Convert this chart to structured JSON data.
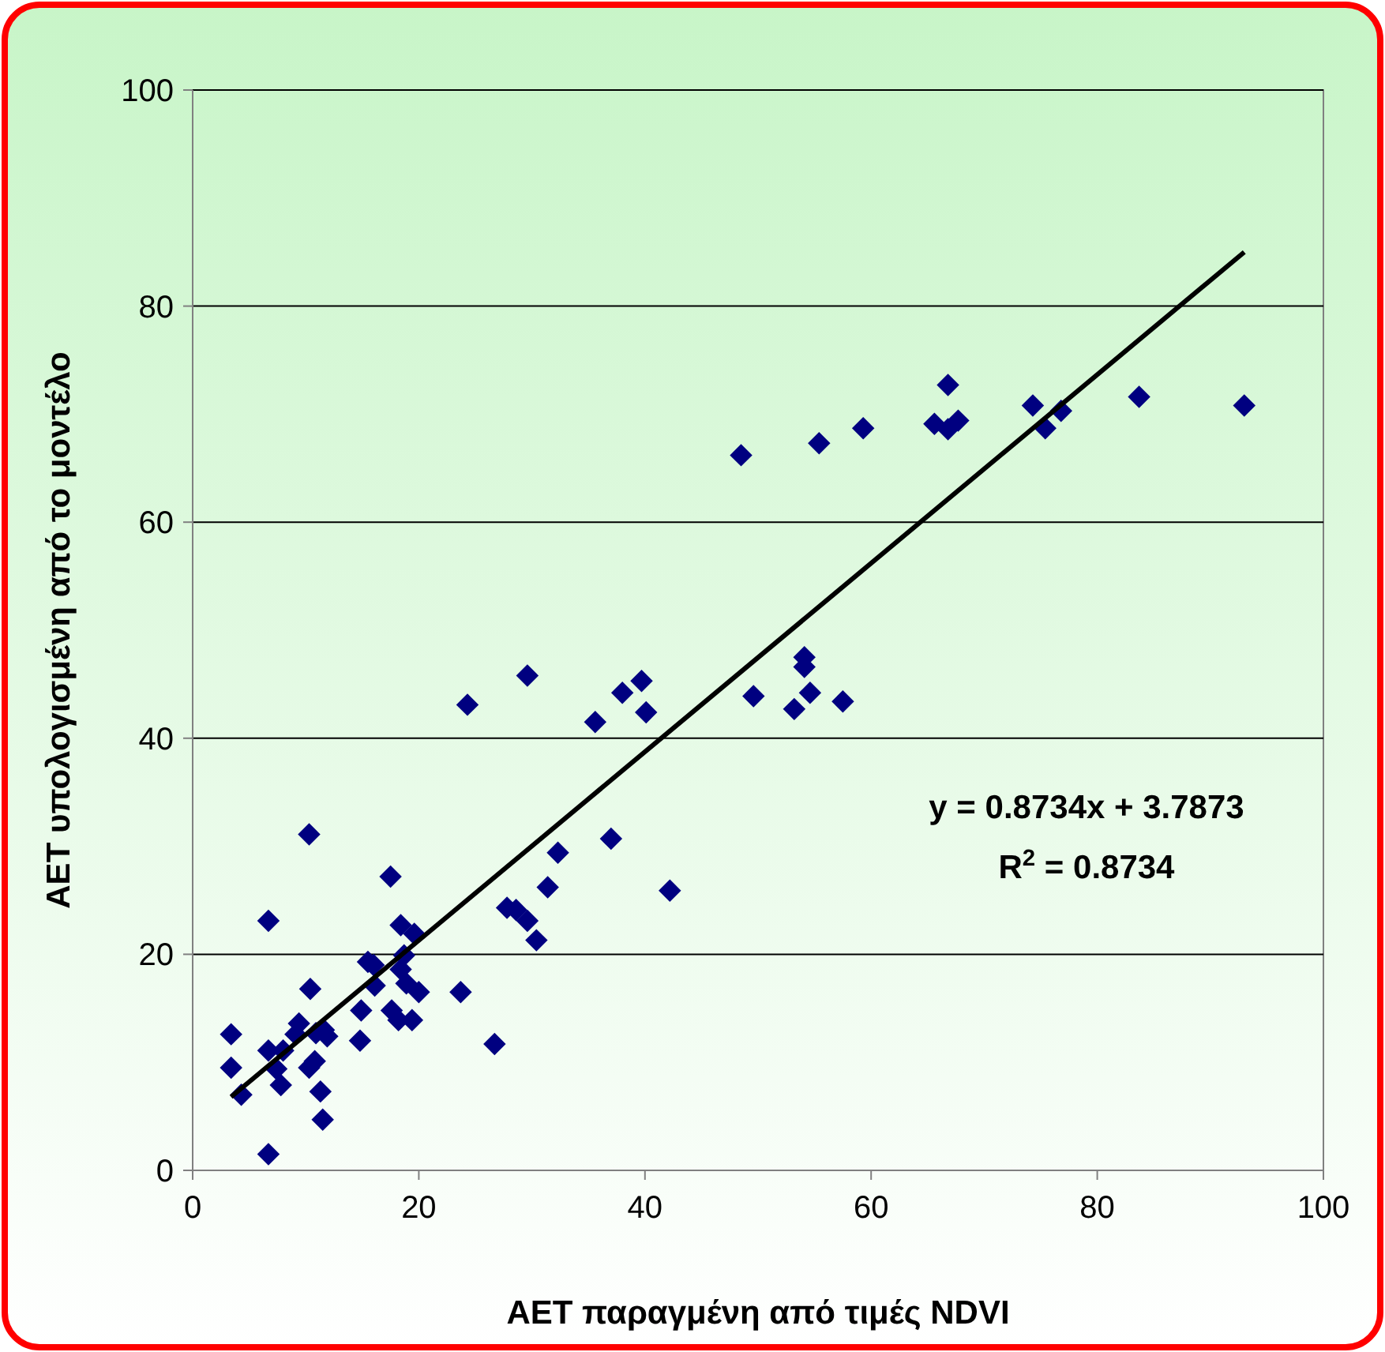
{
  "chart_data": {
    "type": "scatter",
    "xlabel": "AET παραγμένη από τιμές NDVI",
    "ylabel": "AET υπολογισμένη από το μοντέλο",
    "xlim": [
      0,
      100
    ],
    "ylim": [
      0,
      100
    ],
    "xticks": [
      0,
      20,
      40,
      60,
      80,
      100
    ],
    "yticks": [
      0,
      20,
      40,
      60,
      80,
      100
    ],
    "grid": "y",
    "annotations": [
      "y = 0.8734x + 3.7873",
      "R$^{2}$ = 0.8734"
    ],
    "series": [
      {
        "marker": "diamond",
        "color": "#000080",
        "x": [
          3.4,
          3.4,
          4.3,
          6.7,
          6.7,
          6.7,
          7.4,
          7.8,
          8.0,
          9.1,
          9.4,
          10.4,
          10.3,
          10.3,
          10.8,
          10.9,
          11.3,
          11.5,
          11.6,
          11.9,
          14.8,
          14.9,
          15.5,
          16.1,
          16.0,
          17.5,
          17.6,
          18.2,
          18.4,
          18.4,
          18.7,
          18.9,
          19.4,
          19.6,
          20.0,
          23.7,
          26.7,
          24.3,
          29.6,
          35.6,
          38.0,
          39.7,
          40.1,
          32.3,
          37.0,
          42.2,
          31.4,
          27.8,
          28.6,
          29.6,
          30.4,
          48.5,
          55.4,
          59.3,
          65.6,
          66.8,
          66.8,
          67.7,
          74.3,
          75.4,
          76.8,
          83.7,
          93.0,
          49.6,
          53.2,
          54.1,
          54.1,
          54.6,
          57.5
        ],
        "values": [
          12.6,
          9.5,
          7.0,
          23.1,
          11.1,
          1.5,
          9.4,
          7.9,
          11.1,
          12.6,
          13.6,
          16.8,
          31.1,
          9.5,
          10.1,
          12.7,
          7.3,
          4.7,
          13.0,
          12.4,
          12.0,
          14.8,
          19.3,
          17.1,
          19.0,
          27.2,
          14.8,
          13.9,
          18.6,
          22.7,
          19.9,
          17.3,
          13.9,
          21.9,
          16.5,
          16.5,
          11.7,
          43.1,
          45.8,
          41.5,
          44.2,
          45.3,
          42.4,
          29.4,
          30.7,
          25.9,
          26.2,
          24.3,
          24.1,
          23.1,
          21.3,
          66.2,
          67.3,
          68.7,
          69.1,
          72.7,
          68.6,
          69.4,
          70.8,
          68.7,
          70.3,
          71.6,
          70.8,
          43.9,
          42.7,
          47.5,
          46.6,
          44.2,
          43.4
        ]
      },
      {
        "type": "line",
        "color": "#000000",
        "marker": "none",
        "line_style": "solid",
        "x": [
          3.4,
          93.0
        ],
        "values": [
          6.8,
          85.0
        ]
      }
    ]
  }
}
